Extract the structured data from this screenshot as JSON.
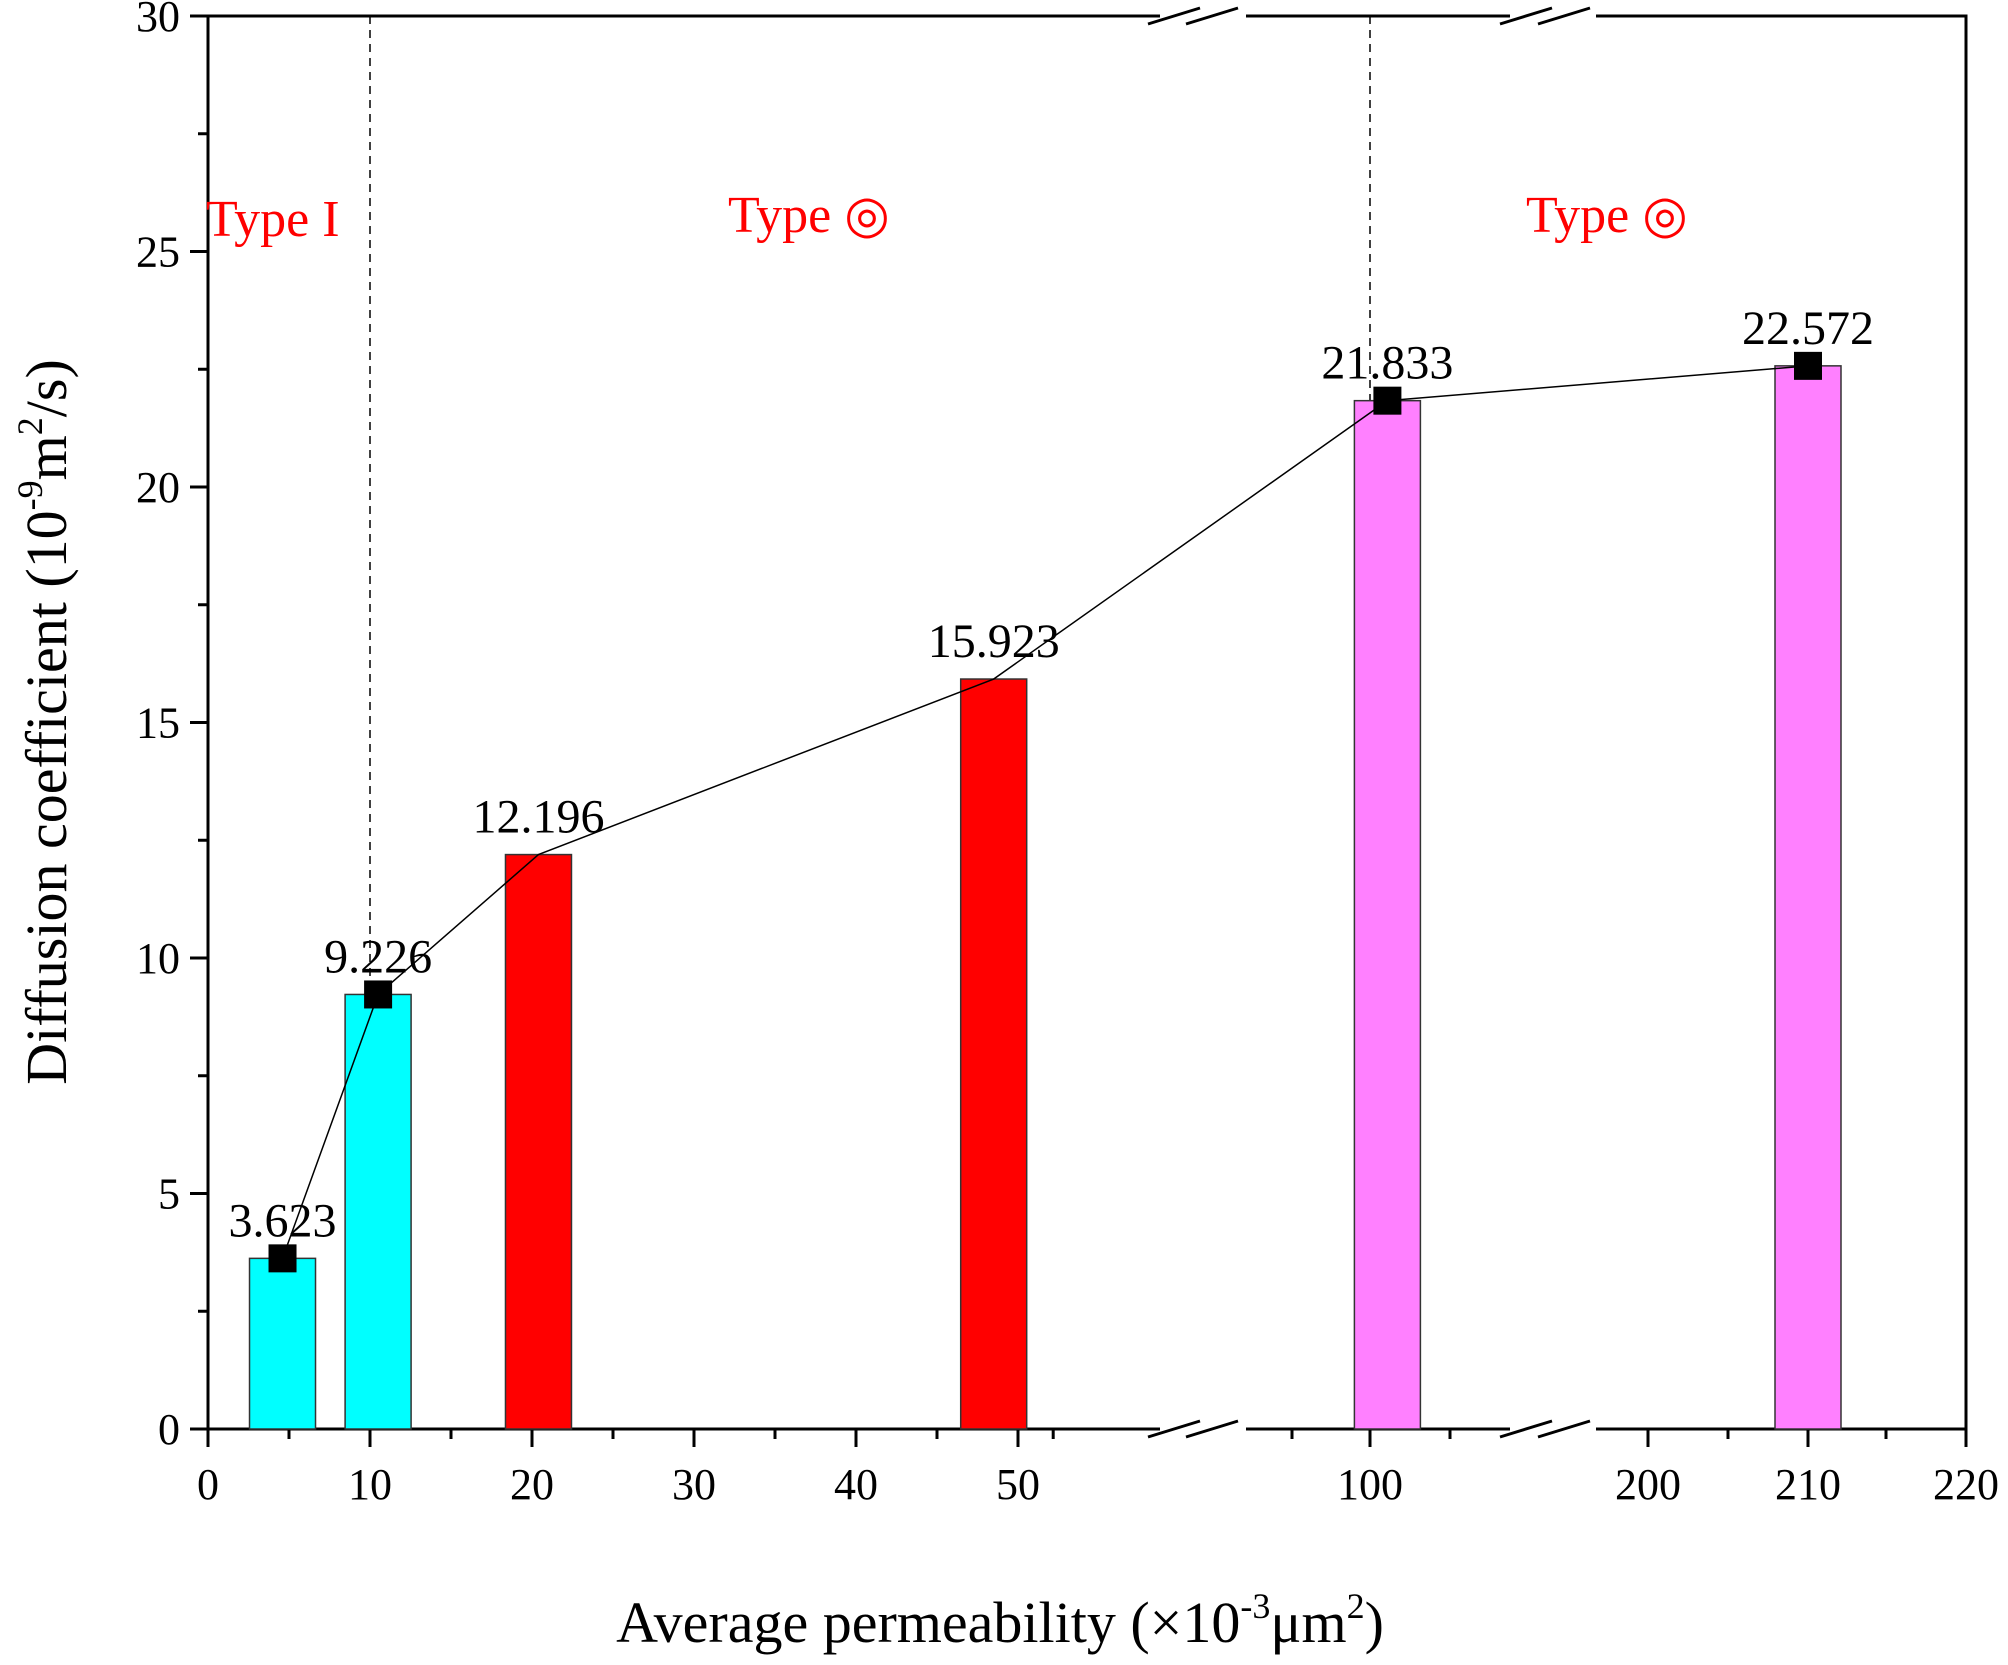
{
  "chart_data": {
    "type": "bar",
    "title": "",
    "xlabel_main": "Average permeability (×10",
    "xlabel_sup1": "-3",
    "xlabel_mid": "μm",
    "xlabel_sup2": "2",
    "xlabel_end": ")",
    "ylabel_main": "Diffusion coefficient (10",
    "ylabel_sup1": "-9",
    "ylabel_mid": "m",
    "ylabel_sup2": "2",
    "ylabel_end": "/s)",
    "ylim": [
      0,
      30
    ],
    "y_ticks": [
      "0",
      "5",
      "10",
      "15",
      "20",
      "25",
      "30"
    ],
    "x_tick_labels": [
      "0",
      "10",
      "20",
      "30",
      "40",
      "50",
      "100",
      "200",
      "210",
      "220"
    ],
    "x_axis_breaks": "between 50 and 100, and between 100 and 200",
    "regions": [
      {
        "label": "Type I",
        "color": "#ff0000"
      },
      {
        "label": "Type ◎",
        "color": "#ff0000"
      },
      {
        "label": "Type ◎",
        "color": "#ff0000"
      }
    ],
    "dividers": [
      "x=10",
      "x=100"
    ],
    "bars": [
      {
        "x": 4.6,
        "value": 3.623,
        "label": "3.623",
        "color": "#00ffff"
      },
      {
        "x": 10.5,
        "value": 9.226,
        "label": "9.226",
        "color": "#00ffff"
      },
      {
        "x": 20.4,
        "value": 12.196,
        "label": "12.196",
        "color": "#ff0000"
      },
      {
        "x": 48.5,
        "value": 15.923,
        "label": "15.923",
        "color": "#ff0000"
      },
      {
        "x": 105,
        "value": 21.833,
        "label": "21.833",
        "color": "#ff80ff"
      },
      {
        "x": 210,
        "value": 22.572,
        "label": "22.572",
        "color": "#ff80ff"
      }
    ],
    "line_series": {
      "name": "Diffusion coefficient",
      "marker": "square",
      "marked_points": [
        3.623,
        9.226,
        21.833,
        22.572
      ],
      "values": [
        3.623,
        9.226,
        12.196,
        15.923,
        21.833,
        22.572
      ]
    }
  }
}
